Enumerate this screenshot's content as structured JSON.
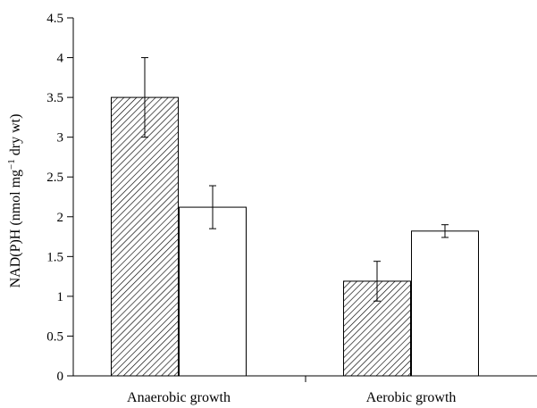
{
  "chart_data": {
    "type": "bar",
    "categories": [
      "Anaerobic growth",
      "Aerobic growth"
    ],
    "series": [
      {
        "pattern": "hatched",
        "values": [
          3.5,
          1.19
        ],
        "error": [
          0.5,
          0.25
        ]
      },
      {
        "pattern": "open",
        "values": [
          2.12,
          1.82
        ],
        "error": [
          0.27,
          0.08
        ]
      }
    ],
    "ylabel_main": "NAD(P)H (nmol mg",
    "ylabel_sup": "−1",
    "ylabel_tail": " dry wt)",
    "ylim": [
      0,
      4.5
    ],
    "yticks": [
      "0",
      "0.5",
      "1",
      "1.5",
      "2",
      "2.5",
      "3",
      "3.5",
      "4",
      "4.5"
    ],
    "grid": false,
    "legend": "none"
  }
}
